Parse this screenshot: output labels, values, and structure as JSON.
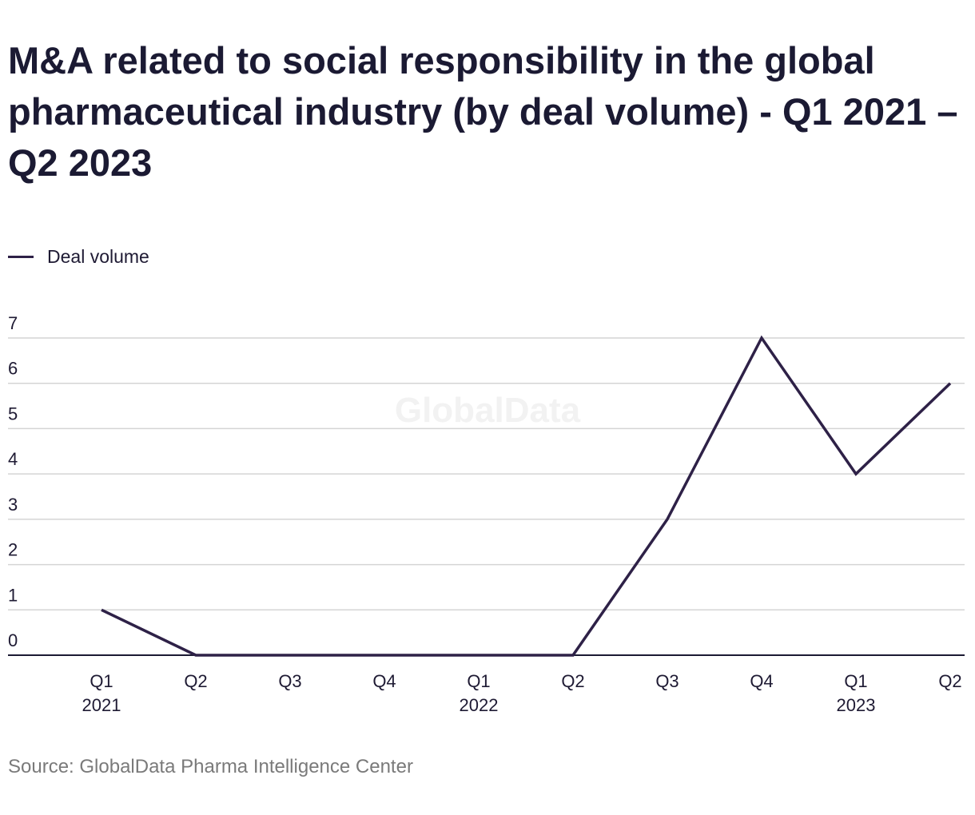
{
  "title": "M&A related to social responsibility in the global pharmaceutical industry (by deal volume) - Q1 2021 – Q2 2023",
  "source": "Source: GlobalData Pharma Intelligence Center",
  "watermark": "GlobalData",
  "colors": {
    "line": "#2e2147",
    "grid": "#d4d4d4",
    "axis": "#1b1a33",
    "text": "#1e1a33"
  },
  "chart_data": {
    "type": "line",
    "title": "M&A related to social responsibility in the global pharmaceutical industry (by deal volume) - Q1 2021 – Q2 2023",
    "categories": [
      "Q1 2021",
      "Q2 2021",
      "Q3 2021",
      "Q4 2021",
      "Q1 2022",
      "Q2 2022",
      "Q3 2022",
      "Q4 2022",
      "Q1 2023",
      "Q2 2023"
    ],
    "x_tick_labels": [
      {
        "quarter": "Q1",
        "year": "2021"
      },
      {
        "quarter": "Q2",
        "year": ""
      },
      {
        "quarter": "Q3",
        "year": ""
      },
      {
        "quarter": "Q4",
        "year": ""
      },
      {
        "quarter": "Q1",
        "year": "2022"
      },
      {
        "quarter": "Q2",
        "year": ""
      },
      {
        "quarter": "Q3",
        "year": ""
      },
      {
        "quarter": "Q4",
        "year": ""
      },
      {
        "quarter": "Q1",
        "year": "2023"
      },
      {
        "quarter": "Q2",
        "year": ""
      }
    ],
    "series": [
      {
        "name": "Deal volume",
        "values": [
          1,
          0,
          0,
          0,
          0,
          0,
          3,
          7,
          4,
          6
        ]
      }
    ],
    "yticks": [
      0,
      1,
      2,
      3,
      4,
      5,
      6,
      7
    ],
    "ylim": [
      0,
      7
    ],
    "xlabel": "",
    "ylabel": "",
    "grid": true,
    "legend_position": "top-left"
  }
}
